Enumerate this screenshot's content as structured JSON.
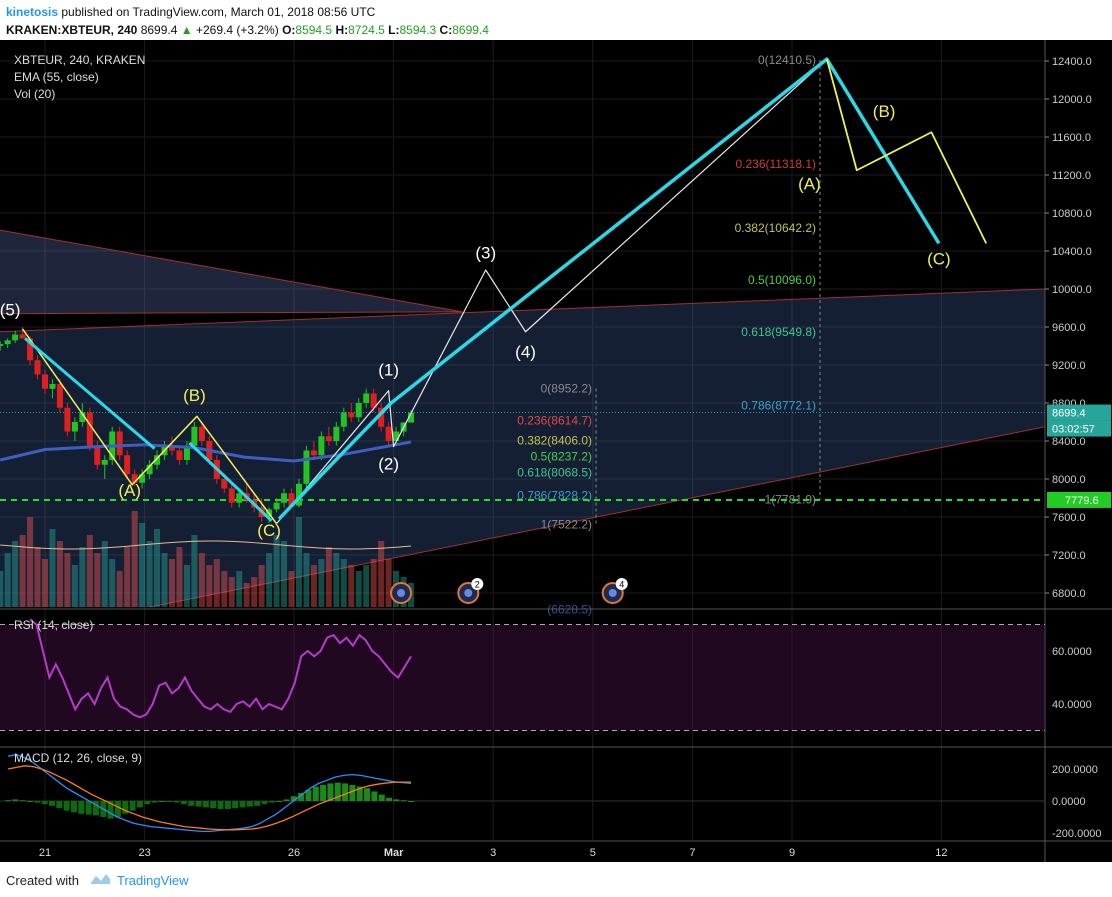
{
  "header": {
    "username": "kinetosis",
    "published_text": "published on TradingView.com, March 01, 2018 08:56 UTC",
    "symbol_line": "KRAKEN:XBTEUR, 240",
    "last_price": "8699.4",
    "change": "+269.4 (+3.2%)",
    "o_label": "O:",
    "o_value": "8594.5",
    "h_label": "H:",
    "h_value": "8724.5",
    "l_label": "L:",
    "l_value": "8594.3",
    "c_label": "C:",
    "c_value": "8699.4"
  },
  "footer": {
    "created_with": "Created with",
    "brand": "TradingView"
  },
  "colors": {
    "background": "#000000",
    "up": "#26a69a",
    "down": "#ef5350",
    "cyan": "#29d9e6",
    "yellow": "#f0f05a",
    "ema": "#3f5fc0",
    "rsi": "#b43cc8",
    "macd": "#2b8cff",
    "signal": "#ff7a1a",
    "dashed_green": "#22e022"
  },
  "chart_data": [
    {
      "type": "candlestick",
      "title": "XBTEUR, 240, KRAKEN",
      "indicators": [
        "EMA (55, close)",
        "Vol (20)"
      ],
      "ylim": [
        6600,
        12600
      ],
      "y_ticks": [
        "12400.0",
        "12000.0",
        "11600.0",
        "11200.0",
        "10800.0",
        "10400.0",
        "10000.0",
        "9600.0",
        "9200.0",
        "8800.0",
        "8400.0",
        "8000.0",
        "7600.0",
        "7200.0",
        "6800.0"
      ],
      "x_ticks": [
        {
          "label": "21",
          "day": 21
        },
        {
          "label": "23",
          "day": 23
        },
        {
          "label": "26",
          "day": 26
        },
        {
          "label": "Mar",
          "day": 28
        },
        {
          "label": "3",
          "day": 30
        },
        {
          "label": "5",
          "day": 32
        },
        {
          "label": "7",
          "day": 34
        },
        {
          "label": "9",
          "day": 36
        },
        {
          "label": "12",
          "day": 39
        }
      ],
      "last_price_label": "8699.4",
      "countdown": "03:02:57",
      "support_label": "7779.6",
      "support_level": 7779.6,
      "candles": [
        [
          20.1,
          9400,
          9450,
          9350,
          9420
        ],
        [
          20.25,
          9420,
          9480,
          9380,
          9460
        ],
        [
          20.4,
          9460,
          9560,
          9430,
          9520
        ],
        [
          20.55,
          9520,
          9600,
          9480,
          9480
        ],
        [
          20.7,
          9480,
          9500,
          9200,
          9250
        ],
        [
          20.85,
          9250,
          9300,
          9050,
          9100
        ],
        [
          21.0,
          9100,
          9150,
          8900,
          8950
        ],
        [
          21.15,
          8950,
          9050,
          8850,
          9000
        ],
        [
          21.3,
          9000,
          9050,
          8700,
          8750
        ],
        [
          21.45,
          8750,
          8800,
          8450,
          8500
        ],
        [
          21.6,
          8500,
          8650,
          8400,
          8600
        ],
        [
          21.75,
          8600,
          8800,
          8550,
          8700
        ],
        [
          21.9,
          8700,
          8750,
          8300,
          8350
        ],
        [
          22.05,
          8350,
          8400,
          8100,
          8150
        ],
        [
          22.2,
          8150,
          8250,
          8000,
          8200
        ],
        [
          22.35,
          8200,
          8550,
          8150,
          8500
        ],
        [
          22.5,
          8500,
          8550,
          8200,
          8250
        ],
        [
          22.65,
          8250,
          8300,
          8000,
          8050
        ],
        [
          22.8,
          8050,
          8100,
          7930,
          7960
        ],
        [
          22.95,
          7960,
          8100,
          7900,
          8050
        ],
        [
          23.1,
          8050,
          8200,
          8000,
          8150
        ],
        [
          23.25,
          8150,
          8300,
          8100,
          8250
        ],
        [
          23.4,
          8250,
          8400,
          8200,
          8350
        ],
        [
          23.55,
          8350,
          8450,
          8250,
          8300
        ],
        [
          23.7,
          8300,
          8350,
          8150,
          8200
        ],
        [
          23.85,
          8200,
          8400,
          8150,
          8350
        ],
        [
          24.0,
          8350,
          8600,
          8300,
          8550
        ],
        [
          24.15,
          8550,
          8600,
          8350,
          8400
        ],
        [
          24.3,
          8400,
          8450,
          8150,
          8200
        ],
        [
          24.45,
          8200,
          8250,
          7950,
          8000
        ],
        [
          24.6,
          8000,
          8050,
          7850,
          7900
        ],
        [
          24.75,
          7900,
          7950,
          7700,
          7750
        ],
        [
          24.9,
          7750,
          7900,
          7700,
          7850
        ],
        [
          25.05,
          7850,
          7950,
          7750,
          7780
        ],
        [
          25.2,
          7780,
          7850,
          7650,
          7700
        ],
        [
          25.35,
          7700,
          7800,
          7550,
          7600
        ],
        [
          25.5,
          7600,
          7700,
          7540,
          7680
        ],
        [
          25.65,
          7680,
          7800,
          7650,
          7750
        ],
        [
          25.8,
          7750,
          7900,
          7700,
          7850
        ],
        [
          25.95,
          7850,
          7900,
          7700,
          7720
        ],
        [
          26.1,
          7720,
          8000,
          7700,
          7950
        ],
        [
          26.25,
          7950,
          8350,
          7900,
          8300
        ],
        [
          26.4,
          8300,
          8400,
          8200,
          8250
        ],
        [
          26.55,
          8250,
          8500,
          8200,
          8450
        ],
        [
          26.7,
          8450,
          8550,
          8350,
          8400
        ],
        [
          26.85,
          8400,
          8600,
          8350,
          8550
        ],
        [
          27.0,
          8550,
          8750,
          8500,
          8700
        ],
        [
          27.15,
          8700,
          8800,
          8600,
          8650
        ],
        [
          27.3,
          8650,
          8850,
          8600,
          8800
        ],
        [
          27.45,
          8800,
          8950,
          8750,
          8900
        ],
        [
          27.6,
          8900,
          8950,
          8700,
          8750
        ],
        [
          27.75,
          8750,
          8800,
          8500,
          8550
        ],
        [
          27.9,
          8550,
          8600,
          8350,
          8400
        ],
        [
          28.05,
          8400,
          8550,
          8380,
          8500
        ],
        [
          28.2,
          8500,
          8600,
          8450,
          8594
        ],
        [
          28.35,
          8594,
          8724,
          8594,
          8699
        ]
      ],
      "ema55": [
        [
          20.1,
          8200
        ],
        [
          21.0,
          8310
        ],
        [
          22.0,
          8340
        ],
        [
          23.0,
          8360
        ],
        [
          24.0,
          8330
        ],
        [
          25.0,
          8230
        ],
        [
          26.0,
          8190
        ],
        [
          27.0,
          8260
        ],
        [
          28.35,
          8390
        ]
      ],
      "volume": [
        3.0,
        4.5,
        5.5,
        6.0,
        7.5,
        5.0,
        4.0,
        6.5,
        5.5,
        4.5,
        3.5,
        5.0,
        6.0,
        4.5,
        5.5,
        4.0,
        3.0,
        5.0,
        8.0,
        7.0,
        5.5,
        6.5,
        4.5,
        4.0,
        5.0,
        3.5,
        6.0,
        4.5,
        3.5,
        4.0,
        3.0,
        2.5,
        3.0,
        2.0,
        2.5,
        3.5,
        4.5,
        6.0,
        5.5,
        3.0,
        7.5,
        4.5,
        3.5,
        4.0,
        5.0,
        4.5,
        4.0,
        3.5,
        3.0,
        3.5,
        4.0,
        5.5,
        4.0,
        3.0,
        2.5,
        2.0
      ],
      "wave_labels": [
        {
          "text": "(5)",
          "day": 20.3,
          "price": 9720,
          "color": "#ffffff"
        },
        {
          "text": "(A)",
          "day": 22.7,
          "price": 7820,
          "color": "#f0f05a"
        },
        {
          "text": "(B)",
          "day": 24.0,
          "price": 8820,
          "color": "#f0f05a"
        },
        {
          "text": "(C)",
          "day": 25.5,
          "price": 7400,
          "color": "#f0f05a"
        },
        {
          "text": "(1)",
          "day": 27.9,
          "price": 9090,
          "color": "#ffffff"
        },
        {
          "text": "(2)",
          "day": 27.9,
          "price": 8100,
          "color": "#ffffff"
        },
        {
          "text": "(3)",
          "day": 29.85,
          "price": 10320,
          "color": "#ffffff"
        },
        {
          "text": "(4)",
          "day": 30.65,
          "price": 9280,
          "color": "#ffffff"
        },
        {
          "text": "(A)",
          "day": 36.35,
          "price": 11050,
          "color": "#f0f05a"
        },
        {
          "text": "(B)",
          "day": 37.85,
          "price": 11810,
          "color": "#f0f05a"
        },
        {
          "text": "(C)",
          "day": 38.95,
          "price": 10260,
          "color": "#f0f05a"
        }
      ],
      "fib_small": [
        {
          "text": "0(8952.2)",
          "price": 8952.2,
          "color": "#8a8a8a"
        },
        {
          "text": "0.236(8614.7)",
          "price": 8614.7,
          "color": "#e04848"
        },
        {
          "text": "0.382(8406.0)",
          "price": 8406.0,
          "color": "#c4c44a"
        },
        {
          "text": "0.5(8237.2)",
          "price": 8237.2,
          "color": "#4ad04a"
        },
        {
          "text": "0.618(8068.5)",
          "price": 8068.5,
          "color": "#3ec690"
        },
        {
          "text": "0.786(7828.2)",
          "price": 7828.2,
          "color": "#3aa0c8"
        },
        {
          "text": "1(7522.2)",
          "price": 7522.2,
          "color": "#8a8a8a"
        }
      ],
      "fib_large": [
        {
          "text": "0(12410.5)",
          "price": 12410.5,
          "color": "#8a8a8a"
        },
        {
          "text": "0.236(11318.1)",
          "price": 11318.1,
          "color": "#d03c3c"
        },
        {
          "text": "0.382(10642.2)",
          "price": 10642.2,
          "color": "#c4c44a"
        },
        {
          "text": "0.5(10096.0)",
          "price": 10096.0,
          "color": "#4ad04a"
        },
        {
          "text": "0.618(9549.8)",
          "price": 9549.8,
          "color": "#3ec690"
        },
        {
          "text": "0.786(8772.1)",
          "price": 8772.1,
          "color": "#3aa0c8"
        },
        {
          "text": "1(7781.9)",
          "price": 7781.9,
          "color": "#8a8a8a"
        },
        {
          "text": "(6628.5)",
          "price": 6628.5,
          "color": "#3a50a0"
        }
      ],
      "event_badges": [
        {
          "day": 28.15,
          "count": ""
        },
        {
          "day": 29.5,
          "count": "2"
        },
        {
          "day": 32.4,
          "count": "4"
        }
      ]
    },
    {
      "type": "line",
      "title": "RSI (14, close)",
      "ylim": [
        27,
        74
      ],
      "y_ticks": [
        "60.0000",
        "40.0000"
      ],
      "bands": [
        70,
        30
      ],
      "values": [
        72,
        70,
        60,
        50,
        55,
        50,
        44,
        38,
        42,
        44,
        40,
        46,
        50,
        42,
        39,
        38,
        36,
        35,
        36,
        40,
        47,
        48,
        44,
        46,
        50,
        45,
        42,
        39,
        38,
        40,
        38,
        37,
        40,
        41,
        39,
        42,
        38,
        40,
        39,
        38,
        42,
        48,
        58,
        60,
        58,
        60,
        65,
        66,
        63,
        65,
        62,
        66,
        64,
        60,
        58,
        55,
        52,
        50,
        54,
        58
      ]
    },
    {
      "type": "bar",
      "title": "MACD (12, 26, close, 9)",
      "ylim": [
        -230,
        260
      ],
      "y_ticks": [
        "200.0000",
        "0.0000",
        "-200.0000"
      ],
      "histogram": [
        5,
        10,
        5,
        0,
        -10,
        -20,
        -30,
        -45,
        -60,
        -70,
        -80,
        -85,
        -90,
        -100,
        -110,
        -100,
        -80,
        -60,
        -40,
        -20,
        -10,
        0,
        -5,
        -10,
        -20,
        -30,
        -35,
        -40,
        -45,
        -50,
        -50,
        -45,
        -40,
        -35,
        -30,
        -20,
        -10,
        0,
        10,
        30,
        50,
        70,
        90,
        100,
        110,
        115,
        110,
        100,
        90,
        80,
        60,
        40,
        20,
        10,
        5,
        0
      ],
      "macd": [
        280,
        290,
        270,
        240,
        200,
        160,
        120,
        80,
        50,
        20,
        -10,
        -40,
        -70,
        -100,
        -120,
        -140,
        -150,
        -160,
        -165,
        -170,
        -175,
        -180,
        -185,
        -190,
        -190,
        -185,
        -180,
        -175,
        -170,
        -160,
        -140,
        -110,
        -80,
        -40,
        0,
        40,
        80,
        110,
        130,
        150,
        160,
        165,
        160,
        150,
        140,
        130,
        120,
        115,
        110
      ],
      "signal": [
        200,
        210,
        220,
        215,
        200,
        180,
        155,
        130,
        100,
        70,
        40,
        15,
        -10,
        -35,
        -60,
        -80,
        -100,
        -115,
        -130,
        -140,
        -150,
        -160,
        -165,
        -170,
        -175,
        -178,
        -180,
        -180,
        -178,
        -175,
        -168,
        -155,
        -138,
        -118,
        -95,
        -70,
        -45,
        -20,
        0,
        20,
        40,
        60,
        80,
        95,
        105,
        112,
        117,
        118,
        118
      ]
    }
  ]
}
